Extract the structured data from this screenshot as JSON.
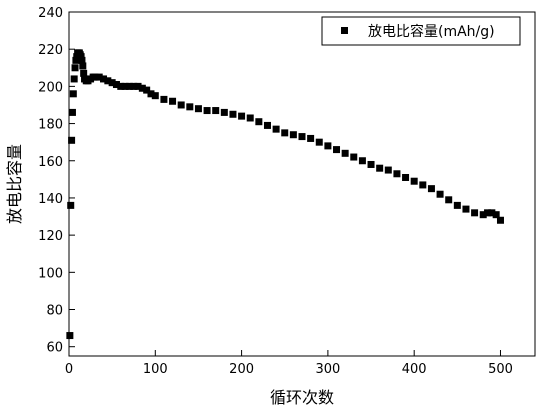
{
  "chart_data": {
    "type": "scatter",
    "xlabel": "循环次数",
    "ylabel": "放电比容量",
    "xlim": [
      0,
      540
    ],
    "ylim": [
      55,
      240
    ],
    "x_ticks": [
      0,
      100,
      200,
      300,
      400,
      500
    ],
    "y_ticks": [
      60,
      80,
      100,
      120,
      140,
      160,
      180,
      200,
      220,
      240
    ],
    "legend_position": "top-right",
    "marker": "square",
    "series_color": "#000000",
    "series": [
      {
        "name": "放电比容量(mAh/g)",
        "x": [
          1,
          2,
          3,
          4,
          5,
          6,
          7,
          8,
          9,
          10,
          11,
          12,
          13,
          14,
          15,
          16,
          17,
          18,
          20,
          22,
          25,
          28,
          30,
          35,
          40,
          45,
          50,
          55,
          60,
          65,
          70,
          75,
          80,
          85,
          90,
          95,
          100,
          110,
          120,
          130,
          140,
          150,
          160,
          170,
          180,
          190,
          200,
          210,
          220,
          230,
          240,
          250,
          260,
          270,
          280,
          290,
          300,
          310,
          320,
          330,
          340,
          350,
          360,
          370,
          380,
          390,
          400,
          410,
          420,
          430,
          440,
          450,
          460,
          470,
          480,
          485,
          490,
          495,
          500
        ],
        "y": [
          66,
          136,
          171,
          186,
          196,
          204,
          210,
          214,
          216,
          218,
          218,
          218,
          217,
          216,
          214,
          211,
          207,
          204,
          203,
          203,
          204,
          205,
          205,
          205,
          204,
          203,
          202,
          201,
          200,
          200,
          200,
          200,
          200,
          199,
          198,
          196,
          195,
          193,
          192,
          190,
          189,
          188,
          187,
          187,
          186,
          185,
          184,
          183,
          181,
          179,
          177,
          175,
          174,
          173,
          172,
          170,
          168,
          166,
          164,
          162,
          160,
          158,
          156,
          155,
          153,
          151,
          149,
          147,
          145,
          142,
          139,
          136,
          134,
          132,
          131,
          132,
          132,
          131,
          128
        ]
      }
    ]
  }
}
